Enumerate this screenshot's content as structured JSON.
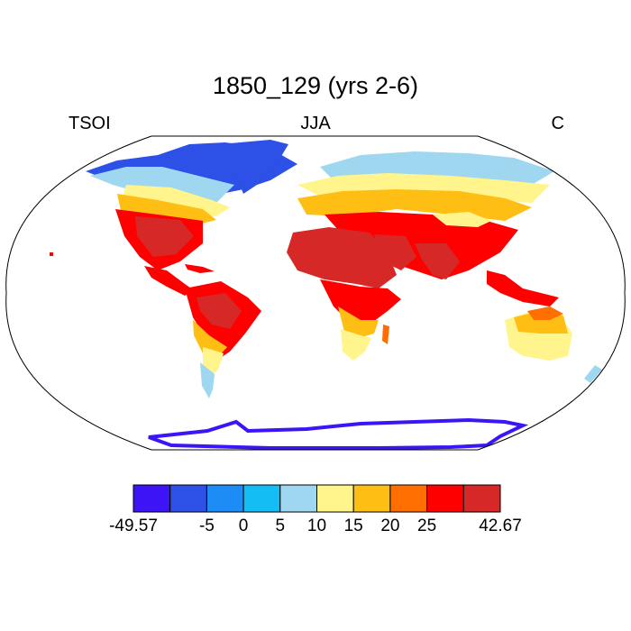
{
  "title": "1850_129 (yrs 2-6)",
  "subtitle_left": "TSOI",
  "subtitle_center": "JJA",
  "subtitle_right": "C",
  "colorbar": {
    "colors": [
      "#3c14f5",
      "#2d50e6",
      "#1e8cf5",
      "#14bef5",
      "#a0d7f0",
      "#fff58c",
      "#ffbe14",
      "#ff6e00",
      "#ff0000",
      "#d72828"
    ],
    "labels": [
      "-49.57",
      "-5",
      "0",
      "5",
      "10",
      "15",
      "20",
      "25",
      "42.67"
    ],
    "label_positions": [
      0,
      2,
      3,
      4,
      5,
      6,
      7,
      8,
      10
    ]
  },
  "map": {
    "projection": "robinson",
    "variable": "soil temperature",
    "land_colors": {
      "antarctica": "#3c14f5",
      "polar": "#2d50e6",
      "cold": "#1e8cf5",
      "cool": "#a0d7f0",
      "mild": "#fff58c",
      "warm": "#ffbe14",
      "hot": "#ff6e00",
      "veryhot": "#ff0000",
      "extreme": "#d72828"
    }
  }
}
